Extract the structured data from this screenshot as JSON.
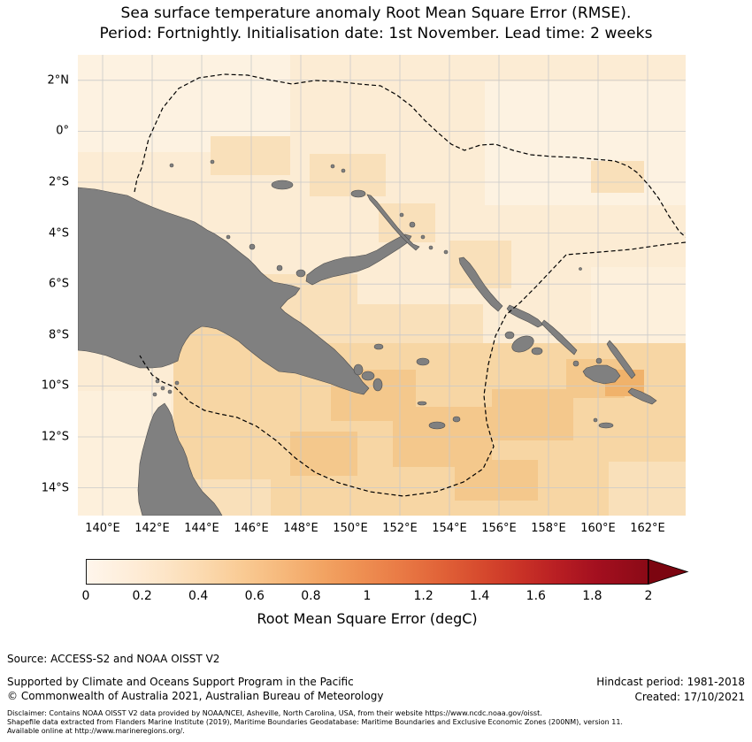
{
  "title": {
    "line1": "Sea surface temperature anomaly Root Mean Square Error (RMSE).",
    "line2": "Period: Fortnightly. Initialisation date: 1st November. Lead time: 2 weeks"
  },
  "map": {
    "x_ticks": [
      "140°E",
      "142°E",
      "144°E",
      "146°E",
      "148°E",
      "150°E",
      "152°E",
      "154°E",
      "156°E",
      "158°E",
      "160°E",
      "162°E"
    ],
    "y_ticks": [
      "2°N",
      "0°",
      "2°S",
      "4°S",
      "6°S",
      "8°S",
      "10°S",
      "12°S",
      "14°S"
    ],
    "land_color": "#808080",
    "ocean_base_color": "#fcecd4",
    "gridline_color": "#c9c9c9",
    "boundary_style": "dashed black line (Exclusive Economic Zone boundary)"
  },
  "colorbar": {
    "label": "Root Mean Square Error (degC)",
    "ticks": [
      "0",
      "0.2",
      "0.4",
      "0.6",
      "0.8",
      "1",
      "1.2",
      "1.4",
      "1.6",
      "1.8",
      "2"
    ],
    "min": 0,
    "max": 2,
    "extend": "max",
    "gradient": [
      "#fff6ec",
      "#fde5c7",
      "#f9ca93",
      "#f2a463",
      "#e97a45",
      "#d74b2e",
      "#b81e23",
      "#8b0a16",
      "#7c0510"
    ]
  },
  "footer": {
    "source": "Source: ACCESS-S2 and NOAA OISST V2",
    "supported": "Supported by Climate and Oceans Support Program in the Pacific",
    "copyright": "© Commonwealth of Australia 2021, Australian Bureau of Meteorology",
    "hindcast": "Hindcast period: 1981-2018",
    "created": "Created: 17/10/2021",
    "disclaimer_lines": [
      "Disclaimer: Contains NOAA OISST V2 data provided by NOAA/NCEI, Asheville, North Carolina, USA, from their website https://www.ncdc.noaa.gov/oisst.",
      "Shapefile data extracted from Flanders Marine Institute (2019), Maritime Boundaries Geodatabase: Maritime Boundaries and Exclusive Economic Zones (200NM), version 11.",
      "Available online at http://www.marineregions.org/."
    ]
  },
  "chart_data": {
    "type": "heatmap",
    "title": "Sea surface temperature anomaly Root Mean Square Error (RMSE). Period: Fortnightly. Initialisation date: 1st November. Lead time: 2 weeks",
    "variable": "SST anomaly RMSE",
    "units": "degC",
    "colorbar_label": "Root Mean Square Error (degC)",
    "value_range": [
      0,
      2
    ],
    "colorbar_tick_step": 0.2,
    "x_tick_labels": [
      "140°E",
      "142°E",
      "144°E",
      "146°E",
      "148°E",
      "150°E",
      "152°E",
      "154°E",
      "156°E",
      "158°E",
      "160°E",
      "162°E"
    ],
    "y_tick_labels": [
      "2°N",
      "0°",
      "2°S",
      "4°S",
      "6°S",
      "8°S",
      "10°S",
      "12°S",
      "14°S"
    ],
    "lon_centers": [
      140,
      142,
      144,
      146,
      148,
      150,
      152,
      154,
      156,
      158,
      160,
      162
    ],
    "lat_centers": [
      2,
      0,
      -2,
      -4,
      -6,
      -8,
      -10,
      -12,
      -14
    ],
    "values_estimated_degC": [
      [
        0.2,
        0.2,
        0.2,
        0.2,
        0.2,
        0.2,
        0.2,
        0.2,
        0.3,
        0.3,
        0.2,
        0.2
      ],
      [
        0.2,
        0.2,
        0.2,
        0.3,
        0.3,
        0.3,
        0.2,
        0.2,
        0.3,
        0.3,
        0.3,
        0.2
      ],
      [
        0.2,
        0.2,
        0.3,
        0.3,
        0.4,
        0.4,
        0.3,
        0.3,
        0.3,
        0.3,
        0.3,
        0.3
      ],
      [
        null,
        null,
        null,
        0.3,
        0.4,
        0.4,
        0.3,
        0.3,
        0.3,
        0.3,
        0.3,
        0.3
      ],
      [
        null,
        null,
        null,
        null,
        0.4,
        0.4,
        0.4,
        0.4,
        0.3,
        0.3,
        0.3,
        0.3
      ],
      [
        null,
        null,
        0.4,
        0.5,
        0.5,
        0.5,
        0.5,
        0.5,
        0.5,
        0.4,
        0.4,
        0.4
      ],
      [
        0.3,
        null,
        0.4,
        0.5,
        0.5,
        0.6,
        0.5,
        0.6,
        0.5,
        0.5,
        0.4,
        0.4
      ],
      [
        0.3,
        null,
        0.4,
        0.5,
        0.5,
        0.5,
        0.6,
        0.5,
        0.5,
        0.4,
        0.4,
        0.4
      ],
      [
        0.3,
        null,
        0.4,
        0.4,
        0.5,
        0.5,
        0.5,
        0.5,
        0.4,
        0.4,
        0.3,
        0.3
      ]
    ],
    "note": "Values estimated from colour shading; null indicates land (grey)."
  }
}
